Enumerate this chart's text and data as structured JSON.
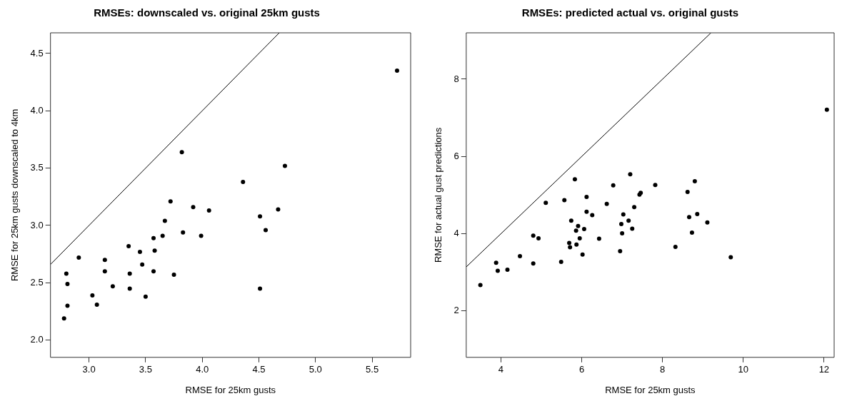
{
  "chart_data": [
    {
      "type": "scatter",
      "title": "RMSEs: downscaled vs. original 25km gusts",
      "xlabel": "RMSE for 25km gusts",
      "ylabel": "RMSE for 25km gusts downscaled to 4km",
      "xlim": [
        2.66,
        5.84
      ],
      "ylim": [
        1.85,
        4.68
      ],
      "xticks": [
        {
          "value": 3,
          "label": "3.0"
        },
        3.5,
        {
          "value": 4,
          "label": "4.0"
        },
        4.5,
        {
          "value": 5,
          "label": "5.0"
        },
        5.5
      ],
      "yticks": [
        {
          "value": 2,
          "label": "2.0"
        },
        2.5,
        {
          "value": 3,
          "label": "3.0"
        },
        3.5,
        {
          "value": 4,
          "label": "4.0"
        },
        4.5
      ],
      "grid": false,
      "legend": false,
      "marker": "circle",
      "series": [
        {
          "color": "#000000",
          "x": [
            2.78,
            2.8,
            2.81,
            2.81,
            2.91,
            3.03,
            3.07,
            3.14,
            3.14,
            3.21,
            3.35,
            3.36,
            3.36,
            3.45,
            3.47,
            3.5,
            3.57,
            3.57,
            3.58,
            3.65,
            3.67,
            3.72,
            3.75,
            3.82,
            3.83,
            3.92,
            3.99,
            4.06,
            4.36,
            4.51,
            4.51,
            4.56,
            4.67,
            4.73,
            5.72
          ],
          "values": [
            2.19,
            2.58,
            2.49,
            2.3,
            2.72,
            2.39,
            2.31,
            2.7,
            2.6,
            2.47,
            2.82,
            2.58,
            2.45,
            2.77,
            2.66,
            2.38,
            2.89,
            2.6,
            2.78,
            2.91,
            3.04,
            3.21,
            2.57,
            3.64,
            2.94,
            3.16,
            2.91,
            3.13,
            3.38,
            3.08,
            2.45,
            2.96,
            3.14,
            3.52,
            4.35
          ]
        },
        {
          "type": "line",
          "color": "#000000",
          "marker": "none",
          "x": [
            2.66,
            4.68
          ],
          "values": [
            2.66,
            4.68
          ]
        }
      ]
    },
    {
      "type": "scatter",
      "title": "RMSEs: predicted actual vs. original gusts",
      "xlabel": "RMSE for 25km gusts",
      "ylabel": "RMSE for actual gust predictions",
      "xlim": [
        3.14,
        12.25
      ],
      "ylim": [
        0.8,
        9.2
      ],
      "xticks": [
        4,
        6,
        8,
        10,
        12
      ],
      "yticks": [
        2,
        4,
        6,
        8
      ],
      "grid": false,
      "legend": false,
      "marker": "circle",
      "series": [
        {
          "color": "#000000",
          "x": [
            3.49,
            3.88,
            3.92,
            4.16,
            4.47,
            4.8,
            4.8,
            4.93,
            5.11,
            5.49,
            5.57,
            5.69,
            5.71,
            5.74,
            5.83,
            5.86,
            5.87,
            5.91,
            5.95,
            6.02,
            6.06,
            6.12,
            6.12,
            6.26,
            6.43,
            6.62,
            6.78,
            6.95,
            6.98,
            7.0,
            7.03,
            7.16,
            7.2,
            7.25,
            7.3,
            7.43,
            7.46,
            7.82,
            8.32,
            8.62,
            8.66,
            8.73,
            8.8,
            8.86,
            9.11,
            9.69,
            12.07
          ],
          "values": [
            2.67,
            3.25,
            3.04,
            3.07,
            3.42,
            3.95,
            3.23,
            3.88,
            4.8,
            3.27,
            4.87,
            3.76,
            3.65,
            4.34,
            5.41,
            4.08,
            3.72,
            4.2,
            3.88,
            3.46,
            4.12,
            4.95,
            4.57,
            4.48,
            3.87,
            4.77,
            5.25,
            3.55,
            4.25,
            4.01,
            4.5,
            4.34,
            5.54,
            4.13,
            4.69,
            5.01,
            5.06,
            5.26,
            3.66,
            5.08,
            4.43,
            4.03,
            5.36,
            4.51,
            4.29,
            3.39,
            7.21
          ]
        },
        {
          "type": "line",
          "color": "#000000",
          "marker": "none",
          "x": [
            3.14,
            9.2
          ],
          "values": [
            3.14,
            9.2
          ]
        }
      ]
    }
  ]
}
